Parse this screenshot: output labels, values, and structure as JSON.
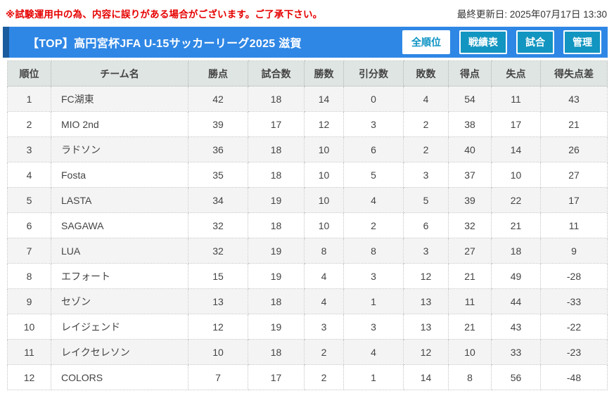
{
  "notice": {
    "warning": "※試験運用中の為、内容に誤りがある場合がございます。ご了承下さい。",
    "last_updated": "最終更新日: 2025年07月17日 13:30"
  },
  "header": {
    "title": "【TOP】高円宮杯JFA U-15サッカーリーグ2025 滋賀",
    "buttons": [
      {
        "label": "全順位",
        "active": true
      },
      {
        "label": "戦績表",
        "active": false
      },
      {
        "label": "試合",
        "active": false
      },
      {
        "label": "管理",
        "active": false
      }
    ]
  },
  "colors": {
    "title_bar_blue": "#2f87e5",
    "title_bar_accent": "#1b5c9e",
    "button_teal": "#1295c0",
    "active_button_text": "#0d93c4",
    "warning_red": "#e60000",
    "table_header_bg": "#dfe5e2",
    "row_stripe": "#f4f4f4"
  },
  "table": {
    "columns": [
      "順位",
      "チーム名",
      "勝点",
      "試合数",
      "勝数",
      "引分数",
      "敗数",
      "得点",
      "失点",
      "得失点差"
    ],
    "rows": [
      [
        1,
        "FC湖東",
        42,
        18,
        14,
        0,
        4,
        54,
        11,
        43
      ],
      [
        2,
        "MIO 2nd",
        39,
        17,
        12,
        3,
        2,
        38,
        17,
        21
      ],
      [
        3,
        "ラドソン",
        36,
        18,
        10,
        6,
        2,
        40,
        14,
        26
      ],
      [
        4,
        "Fosta",
        35,
        18,
        10,
        5,
        3,
        37,
        10,
        27
      ],
      [
        5,
        "LASTA",
        34,
        19,
        10,
        4,
        5,
        39,
        22,
        17
      ],
      [
        6,
        "SAGAWA",
        32,
        18,
        10,
        2,
        6,
        32,
        21,
        11
      ],
      [
        7,
        "LUA",
        32,
        19,
        8,
        8,
        3,
        27,
        18,
        9
      ],
      [
        8,
        "エフォート",
        15,
        19,
        4,
        3,
        12,
        21,
        49,
        -28
      ],
      [
        9,
        "セゾン",
        13,
        18,
        4,
        1,
        13,
        11,
        44,
        -33
      ],
      [
        10,
        "レイジェンド",
        12,
        19,
        3,
        3,
        13,
        21,
        43,
        -22
      ],
      [
        11,
        "レイクセレソン",
        10,
        18,
        2,
        4,
        12,
        10,
        33,
        -23
      ],
      [
        12,
        "COLORS",
        7,
        17,
        2,
        1,
        14,
        8,
        56,
        -48
      ]
    ]
  }
}
